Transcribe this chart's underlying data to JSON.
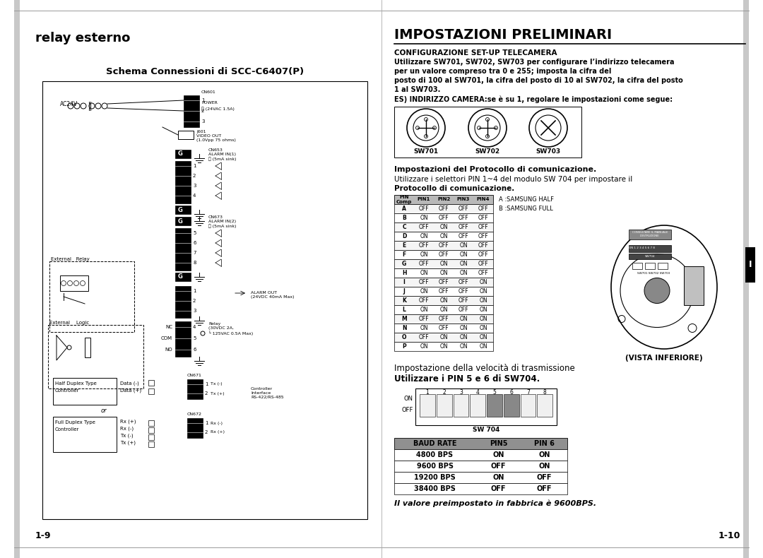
{
  "bg_color": "#ffffff",
  "left_title": "relay esterno",
  "left_diagram_title": "Schema Connessioni di SCC-C6407(P)",
  "left_page": "1-9",
  "right_main_title": "IMPOSTAZIONI PRELIMINARI",
  "right_sec1_title": "CONFIGURAZIONE SET-UP TELECAMERA",
  "right_sec1_lines": [
    "Utilizzare SW701, SW702, SW703 per configurare l’indirizzo telecamera",
    "per un valore compreso tra 0 e 255; imposta la cifra del",
    "posto di 100 al SW701, la cifra del posto di 10 al SW702, la cifra del posto",
    "1 al SW703."
  ],
  "right_sec1_extra": "ES) INDIRIZZO CAMERA:se è su 1, regolare le impostazioni come segue:",
  "sw_labels": [
    "SW701",
    "SW702",
    "SW703"
  ],
  "proto_t1": "Impostazioni del Protocollo di comunicazione.",
  "proto_t2": "Utilizzare i selettori PIN 1~4 del modulo SW 704 per impostare il",
  "proto_t3": "Protocollo di comunicazione.",
  "proto_headers": [
    "PIN\nComp",
    "PIN1",
    "PIN2",
    "PIN3",
    "PIN4"
  ],
  "proto_rows": [
    [
      "A",
      "OFF",
      "OFF",
      "OFF",
      "OFF"
    ],
    [
      "B",
      "ON",
      "OFF",
      "OFF",
      "OFF"
    ],
    [
      "C",
      "OFF",
      "ON",
      "OFF",
      "OFF"
    ],
    [
      "D",
      "ON",
      "ON",
      "OFF",
      "OFF"
    ],
    [
      "E",
      "OFF",
      "OFF",
      "ON",
      "OFF"
    ],
    [
      "F",
      "ON",
      "OFF",
      "ON",
      "OFF"
    ],
    [
      "G",
      "OFF",
      "ON",
      "ON",
      "OFF"
    ],
    [
      "H",
      "ON",
      "ON",
      "ON",
      "OFF"
    ],
    [
      "I",
      "OFF",
      "OFF",
      "OFF",
      "ON"
    ],
    [
      "J",
      "ON",
      "OFF",
      "OFF",
      "ON"
    ],
    [
      "K",
      "OFF",
      "ON",
      "OFF",
      "ON"
    ],
    [
      "L",
      "ON",
      "ON",
      "OFF",
      "ON"
    ],
    [
      "M",
      "OFF",
      "OFF",
      "ON",
      "ON"
    ],
    [
      "N",
      "ON",
      "OFF",
      "ON",
      "ON"
    ],
    [
      "O",
      "OFF",
      "ON",
      "ON",
      "ON"
    ],
    [
      "P",
      "ON",
      "ON",
      "ON",
      "ON"
    ]
  ],
  "samsung_a": "A :SAMSUNG HALF",
  "samsung_b": "B :SAMSUNG FULL",
  "vista_label": "(VISTA INFERIORE)",
  "baud_t1": "Impostazione della velocità di trasmissione",
  "baud_t2": "Utilizzare i PIN 5 e 6 di SW704.",
  "sw704_label": "SW 704",
  "baud_headers": [
    "BAUD RATE",
    "PIN5",
    "PIN 6"
  ],
  "baud_rows": [
    [
      "4800 BPS",
      "ON",
      "ON"
    ],
    [
      "9600 BPS",
      "OFF",
      "ON"
    ],
    [
      "19200 BPS",
      "ON",
      "OFF"
    ],
    [
      "38400 BPS",
      "OFF",
      "OFF"
    ]
  ],
  "footer": "Il valore preimpostato in fabbrica è 9600BPS.",
  "right_page": "1-10"
}
